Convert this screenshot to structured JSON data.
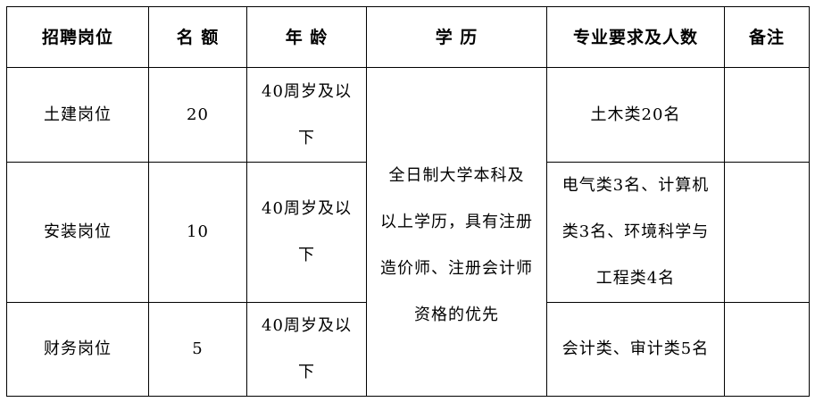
{
  "headers": [
    "招聘岗位",
    "名 额",
    "年 龄",
    "学  历",
    "专业要求及人数",
    "备注"
  ],
  "rows": [
    {
      "position": "土建岗位",
      "count": "20",
      "age": [
        "40周岁及以",
        "下"
      ],
      "major": [
        "土木类20名"
      ],
      "note": ""
    },
    {
      "position": "安装岗位",
      "count": "10",
      "age": [
        "40周岁及以",
        "下"
      ],
      "major": [
        "电气类3名、计算机",
        "类3名、环境科学与",
        "工程类4名"
      ],
      "note": ""
    },
    {
      "position": "财务岗位",
      "count": "5",
      "age": [
        "40周岁及以",
        "下"
      ],
      "major": [
        "会计类、审计类5名"
      ],
      "note": ""
    }
  ],
  "education": [
    "全日制大学本科及",
    "以上学历，具有注册",
    "造价师、注册会计师",
    "资格的优先"
  ]
}
